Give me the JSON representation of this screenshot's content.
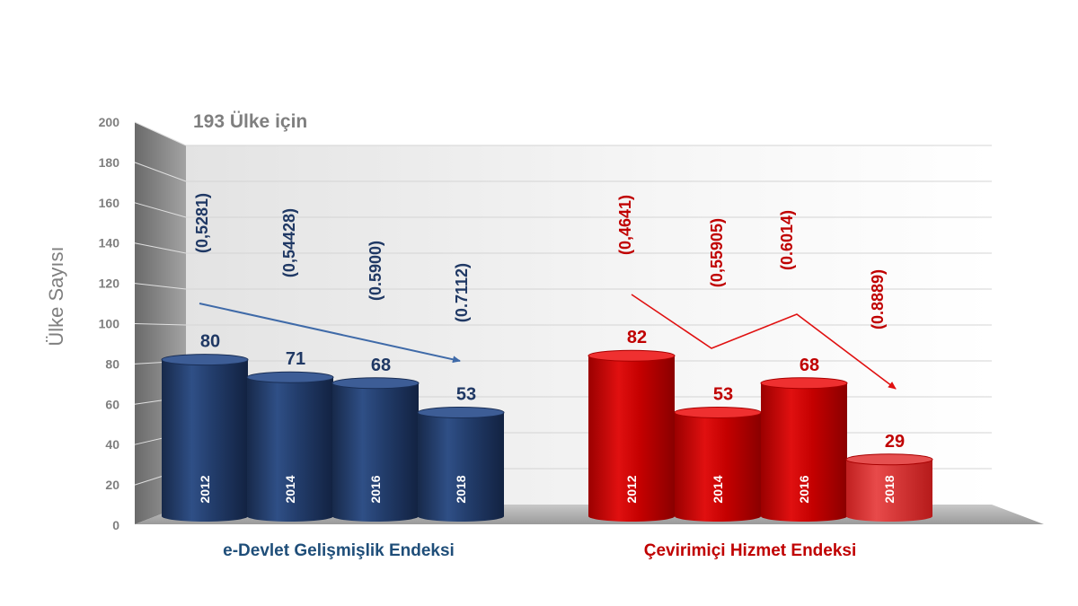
{
  "chart_data": {
    "type": "bar",
    "subtitle": "193 Ülke için",
    "ylabel": "Ülke Sayısı",
    "xlabel": "",
    "ylim": [
      0,
      200
    ],
    "yticks": [
      0,
      20,
      40,
      60,
      80,
      100,
      120,
      140,
      160,
      180,
      200
    ],
    "grid": true,
    "groups": [
      {
        "name": "e-Devlet Gelişmişlik Endeksi",
        "color": "#1f3864",
        "categories": [
          "2012",
          "2014",
          "2016",
          "2018"
        ],
        "values": [
          80,
          71,
          68,
          53
        ],
        "index_labels": [
          "(0,5281)",
          "(0,54428)",
          "(0.5900)",
          "(0.7112)"
        ],
        "trend": "single arrow downward"
      },
      {
        "name": "Çevirimiçi Hizmet Endeksi",
        "color": "#c00000",
        "categories": [
          "2012",
          "2014",
          "2016",
          "2018"
        ],
        "values": [
          82,
          53,
          68,
          29
        ],
        "index_labels": [
          "(0,4641)",
          "(0,55905)",
          "(0.6014)",
          "(0.8889)"
        ],
        "trend": "zigzag arrow downward"
      }
    ]
  }
}
